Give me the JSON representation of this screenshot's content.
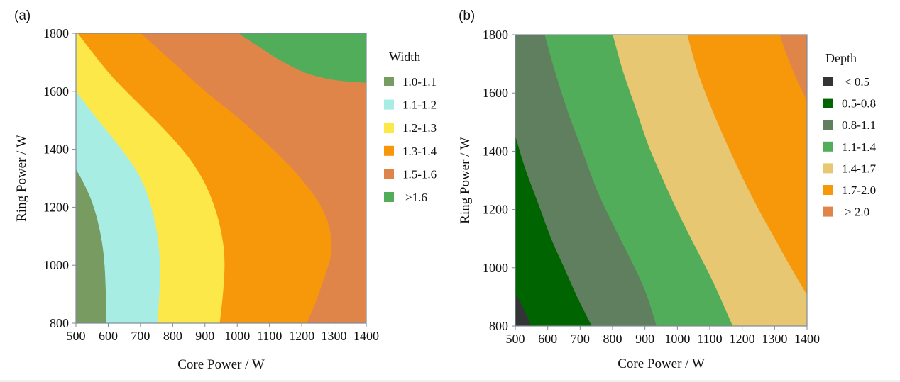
{
  "chart_data": [
    {
      "id": "a",
      "type": "contour",
      "panel_label": "(a)",
      "title": "",
      "xlabel": "Core Power / W",
      "ylabel": "Ring Power / W",
      "xlim": [
        500,
        1400
      ],
      "ylim": [
        800,
        1800
      ],
      "xticks": [
        500,
        600,
        700,
        800,
        900,
        1000,
        1100,
        1200,
        1300,
        1400
      ],
      "yticks": [
        800,
        1000,
        1200,
        1400,
        1600,
        1800
      ],
      "grid": false,
      "legend": {
        "title": "Width",
        "position": "right",
        "entries": [
          {
            "label": "1.0-1.1",
            "color": "#789b62"
          },
          {
            "label": "1.1-1.2",
            "color": "#a8ede4"
          },
          {
            "label": "1.2-1.3",
            "color": "#fde84a"
          },
          {
            "label": "1.3-1.4",
            "color": "#f7980b"
          },
          {
            "label": "1.5-1.6",
            "color": "#e0854a"
          },
          {
            "label": ">1.6",
            "color": "#52ad5a"
          }
        ]
      },
      "background_level_index": 4,
      "regions": [
        {
          "level_index": 5,
          "boundary": [
            [
              1005,
              1800
            ],
            [
              1060,
              1760
            ],
            [
              1130,
              1710
            ],
            [
              1210,
              1665
            ],
            [
              1300,
              1640
            ],
            [
              1400,
              1630
            ]
          ],
          "side": "above"
        },
        {
          "level_index": 3,
          "boundary": [
            [
              700,
              1800
            ],
            [
              800,
              1700
            ],
            [
              900,
              1600
            ],
            [
              1000,
              1510
            ],
            [
              1100,
              1410
            ],
            [
              1180,
              1320
            ],
            [
              1250,
              1220
            ],
            [
              1285,
              1130
            ],
            [
              1290,
              1040
            ],
            [
              1270,
              960
            ],
            [
              1245,
              880
            ],
            [
              1215,
              800
            ]
          ],
          "side": "left"
        },
        {
          "level_index": 2,
          "boundary": [
            [
              505,
              1800
            ],
            [
              560,
              1720
            ],
            [
              620,
              1640
            ],
            [
              700,
              1550
            ],
            [
              780,
              1460
            ],
            [
              850,
              1370
            ],
            [
              900,
              1280
            ],
            [
              935,
              1180
            ],
            [
              955,
              1080
            ],
            [
              960,
              1000
            ],
            [
              955,
              900
            ],
            [
              945,
              800
            ]
          ],
          "side": "left"
        },
        {
          "level_index": 1,
          "boundary": [
            [
              500,
              1600
            ],
            [
              540,
              1540
            ],
            [
              590,
              1470
            ],
            [
              640,
              1400
            ],
            [
              690,
              1320
            ],
            [
              725,
              1230
            ],
            [
              748,
              1130
            ],
            [
              758,
              1040
            ],
            [
              760,
              960
            ],
            [
              757,
              880
            ],
            [
              752,
              800
            ]
          ],
          "side": "left"
        },
        {
          "level_index": 0,
          "boundary": [
            [
              500,
              1330
            ],
            [
              520,
              1290
            ],
            [
              545,
              1230
            ],
            [
              565,
              1160
            ],
            [
              580,
              1080
            ],
            [
              588,
              1000
            ],
            [
              592,
              900
            ],
            [
              593,
              800
            ]
          ],
          "side": "left"
        }
      ]
    },
    {
      "id": "b",
      "type": "contour",
      "panel_label": "(b)",
      "title": "",
      "xlabel": "Core Power / W",
      "ylabel": "Ring Power / W",
      "xlim": [
        500,
        1400
      ],
      "ylim": [
        800,
        1800
      ],
      "xticks": [
        500,
        600,
        700,
        800,
        900,
        1000,
        1100,
        1200,
        1300,
        1400
      ],
      "yticks": [
        800,
        1000,
        1200,
        1400,
        1600,
        1800
      ],
      "grid": false,
      "legend": {
        "title": "Depth",
        "position": "right",
        "entries": [
          {
            "label": "< 0.5",
            "color": "#333436"
          },
          {
            "label": "0.5-0.8",
            "color": "#006400"
          },
          {
            "label": "0.8-1.1",
            "color": "#607f5f"
          },
          {
            "label": "1.1-1.4",
            "color": "#52ad5a"
          },
          {
            "label": "1.4-1.7",
            "color": "#e8c772"
          },
          {
            "label": "1.7-2.0",
            "color": "#f7980b"
          },
          {
            "label": "> 2.0",
            "color": "#e0854a"
          }
        ]
      },
      "background_level_index": 6,
      "regions": [
        {
          "level_index": 5,
          "boundary": [
            [
              1315,
              1800
            ],
            [
              1340,
              1720
            ],
            [
              1370,
              1640
            ],
            [
              1400,
              1570
            ]
          ],
          "side": "left"
        },
        {
          "level_index": 4,
          "boundary": [
            [
              1030,
              1800
            ],
            [
              1060,
              1680
            ],
            [
              1100,
              1560
            ],
            [
              1150,
              1430
            ],
            [
              1200,
              1310
            ],
            [
              1250,
              1200
            ],
            [
              1300,
              1100
            ],
            [
              1350,
              1000
            ],
            [
              1400,
              905
            ]
          ],
          "side": "left"
        },
        {
          "level_index": 3,
          "boundary": [
            [
              800,
              1800
            ],
            [
              830,
              1680
            ],
            [
              870,
              1550
            ],
            [
              910,
              1420
            ],
            [
              960,
              1290
            ],
            [
              1010,
              1170
            ],
            [
              1060,
              1060
            ],
            [
              1110,
              950
            ],
            [
              1170,
              800
            ]
          ],
          "side": "left"
        },
        {
          "level_index": 2,
          "boundary": [
            [
              590,
              1800
            ],
            [
              620,
              1680
            ],
            [
              660,
              1540
            ],
            [
              700,
              1420
            ],
            [
              750,
              1270
            ],
            [
              800,
              1150
            ],
            [
              850,
              1040
            ],
            [
              900,
              920
            ],
            [
              935,
              800
            ]
          ],
          "side": "left"
        },
        {
          "level_index": 1,
          "boundary": [
            [
              500,
              1450
            ],
            [
              530,
              1340
            ],
            [
              570,
              1220
            ],
            [
              610,
              1100
            ],
            [
              650,
              1000
            ],
            [
              690,
              900
            ],
            [
              735,
              800
            ]
          ],
          "side": "left"
        },
        {
          "level_index": 0,
          "boundary": [
            [
              500,
              910
            ],
            [
              520,
              870
            ],
            [
              537,
              830
            ],
            [
              548,
              800
            ]
          ],
          "side": "left"
        }
      ]
    }
  ]
}
